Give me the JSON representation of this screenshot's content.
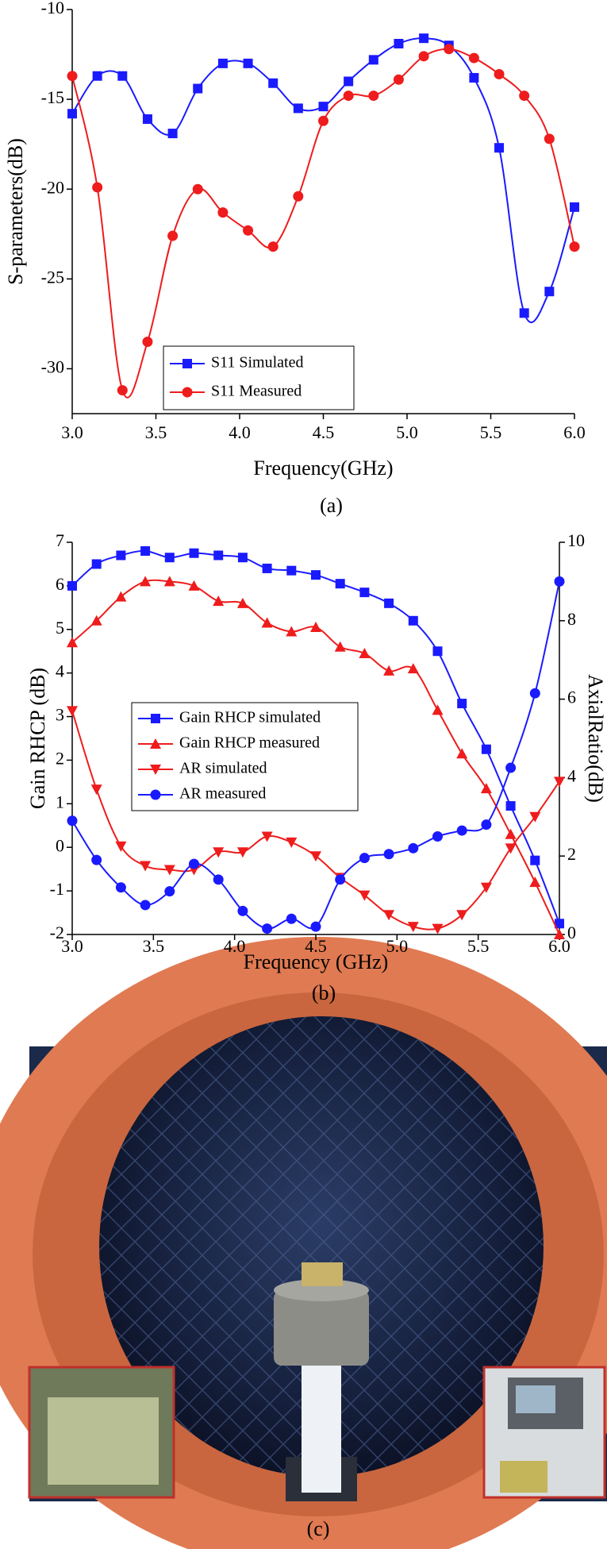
{
  "chart_data": [
    {
      "type": "line",
      "caption": "(a)",
      "xlabel": "Frequency(GHz)",
      "ylabel": "S-parameters(dB)",
      "x": [
        3.0,
        3.15,
        3.3,
        3.45,
        3.6,
        3.75,
        3.9,
        4.05,
        4.2,
        4.35,
        4.5,
        4.65,
        4.8,
        4.95,
        5.1,
        5.25,
        5.4,
        5.55,
        5.7,
        5.85,
        6.0
      ],
      "xlim": [
        3,
        6
      ],
      "xticks": [
        {
          "value": 3,
          "label": "3.0"
        },
        {
          "value": 3.5,
          "label": "3.5"
        },
        {
          "value": 4,
          "label": "4.0"
        },
        {
          "value": 4.5,
          "label": "4.5"
        },
        {
          "value": 5,
          "label": "5.0"
        },
        {
          "value": 5.5,
          "label": "5.5"
        },
        {
          "value": 6,
          "label": "6.0"
        }
      ],
      "ylim": [
        -32.5,
        -10
      ],
      "yticks": [
        -10,
        -15,
        -20,
        -25,
        -30
      ],
      "legend": "lower-left",
      "series": [
        {
          "name": "S11 Simulated",
          "color": "#1a1aff",
          "marker": "square",
          "values": [
            -15.8,
            -13.7,
            -13.7,
            -16.1,
            -16.9,
            -14.4,
            -13.0,
            -13.0,
            -14.1,
            -15.5,
            -15.4,
            -14.0,
            -12.8,
            -11.9,
            -11.6,
            -12.0,
            -13.8,
            -17.7,
            -26.9,
            -25.7,
            -21.0
          ]
        },
        {
          "name": "S11 Measured",
          "color": "#ee1c1c",
          "marker": "circle",
          "values": [
            -13.7,
            -19.9,
            -31.2,
            -28.5,
            -22.6,
            -20.0,
            -21.3,
            -22.3,
            -23.2,
            -20.4,
            -16.2,
            -14.8,
            -14.8,
            -13.9,
            -12.6,
            -12.2,
            -12.7,
            -13.6,
            -14.8,
            -17.2,
            -23.2
          ]
        }
      ]
    },
    {
      "type": "line",
      "caption": "(b)",
      "xlabel": "Frequency (GHz)",
      "ylabel": "Gain RHCP (dB)",
      "y2label": "AxialRatio(dB)",
      "x": [
        3.0,
        3.15,
        3.3,
        3.45,
        3.6,
        3.75,
        3.9,
        4.05,
        4.2,
        4.35,
        4.5,
        4.65,
        4.8,
        4.95,
        5.1,
        5.25,
        5.4,
        5.55,
        5.7,
        5.85,
        6.0
      ],
      "xlim": [
        3,
        6
      ],
      "xticks": [
        {
          "value": 3,
          "label": "3.0"
        },
        {
          "value": 3.5,
          "label": "3.5"
        },
        {
          "value": 4,
          "label": "4.0"
        },
        {
          "value": 4.5,
          "label": "4.5"
        },
        {
          "value": 5,
          "label": "5.0"
        },
        {
          "value": 5.5,
          "label": "5.5"
        },
        {
          "value": 6,
          "label": "6.0"
        }
      ],
      "ylim": [
        -2,
        7
      ],
      "yticks": [
        -2,
        -1,
        0,
        1,
        2,
        3,
        4,
        5,
        6,
        7
      ],
      "y2lim": [
        0,
        10
      ],
      "y2ticks": [
        0,
        2,
        4,
        6,
        8,
        10
      ],
      "legend": "center-left",
      "series": [
        {
          "name": "Gain RHCP simulated",
          "color": "#1a1aff",
          "marker": "square",
          "values": [
            6.0,
            6.5,
            6.7,
            6.8,
            6.65,
            6.75,
            6.7,
            6.65,
            6.4,
            6.35,
            6.25,
            6.05,
            5.85,
            5.6,
            5.2,
            4.5,
            3.3,
            2.25,
            0.95,
            -0.3,
            -1.75
          ]
        },
        {
          "name": "Gain RHCP measured",
          "color": "#ee1c1c",
          "marker": "triangle-up",
          "values": [
            4.7,
            5.2,
            5.75,
            6.1,
            6.1,
            6.0,
            5.65,
            5.6,
            5.15,
            4.95,
            5.05,
            4.6,
            4.45,
            4.05,
            4.1,
            3.15,
            2.15,
            1.35,
            0.3,
            -0.8,
            -2.0
          ]
        },
        {
          "name": "AR simulated",
          "color": "#ee1c1c",
          "marker": "triangle-down",
          "axis": "y2",
          "values": [
            5.7,
            3.7,
            2.25,
            1.75,
            1.65,
            1.65,
            2.1,
            2.1,
            2.5,
            2.35,
            2.0,
            1.45,
            1.0,
            0.5,
            0.2,
            0.15,
            0.5,
            1.2,
            2.2,
            3.0,
            3.9
          ]
        },
        {
          "name": "AR measured",
          "color": "#1a1aff",
          "marker": "circle",
          "axis": "y2",
          "values": [
            2.9,
            1.9,
            1.2,
            0.75,
            1.1,
            1.8,
            1.4,
            0.6,
            0.15,
            0.4,
            0.2,
            1.4,
            1.95,
            2.05,
            2.2,
            2.5,
            2.65,
            2.8,
            4.25,
            6.15,
            9.0
          ]
        }
      ]
    }
  ],
  "photo": {
    "caption": "(c)"
  }
}
